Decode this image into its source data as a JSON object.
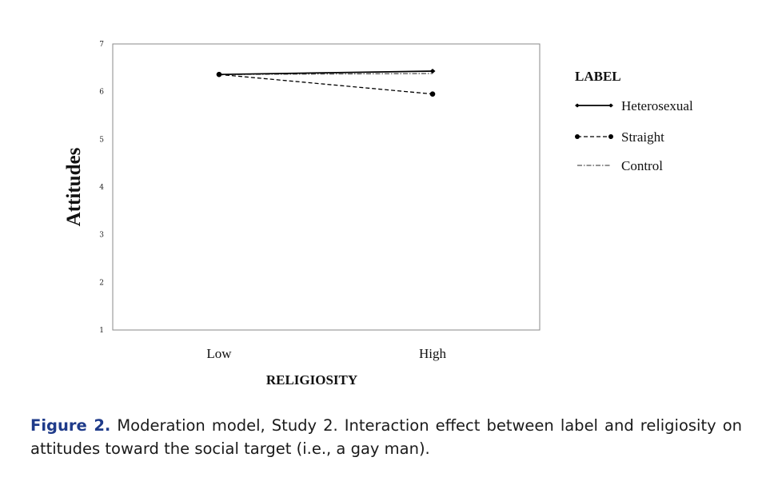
{
  "chart_data": {
    "type": "line",
    "categories": [
      "Low",
      "High"
    ],
    "xlabel": "RELIGIOSITY",
    "ylabel": "Attitudes",
    "ylim": [
      1,
      7
    ],
    "yticks": [
      1,
      2,
      3,
      4,
      5,
      6,
      7
    ],
    "grid": false,
    "legend": {
      "title": "LABEL",
      "placement": "right"
    },
    "series": [
      {
        "name": "Heterosexual",
        "values": [
          6.36,
          6.43
        ],
        "style": "solid",
        "marker": "small-diamond",
        "color": "#000000"
      },
      {
        "name": "Straight",
        "values": [
          6.36,
          5.95
        ],
        "style": "dashed",
        "marker": "circle",
        "color": "#000000"
      },
      {
        "name": "Control",
        "values": [
          6.36,
          6.38
        ],
        "style": "dash-dot",
        "marker": "none",
        "color": "#000000"
      }
    ]
  },
  "caption": {
    "label": "Figure 2.",
    "text": " Moderation model, Study 2. Interaction effect between label and religiosity on attitudes toward the social target (i.e., a gay man)."
  },
  "colors": {
    "caption_label": "#1f3b8a",
    "plot_border": "#888888"
  }
}
